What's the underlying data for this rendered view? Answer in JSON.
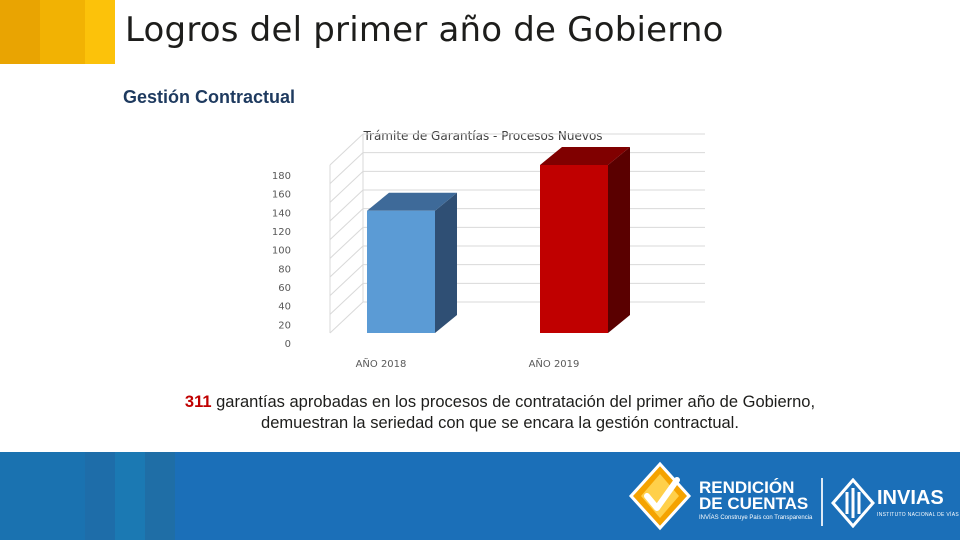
{
  "header": {
    "title": "Logros del primer año de Gobierno",
    "stripe_colors": [
      "#e9a402",
      "#f2b203",
      "#fcc20a"
    ]
  },
  "section": {
    "title": "Gestión Contractual"
  },
  "chart_data": {
    "type": "bar",
    "style": "3d-column",
    "title": "Trámite de Garantías - Procesos Nuevos",
    "categories": [
      "AÑO 2018",
      "AÑO 2019"
    ],
    "values": [
      131,
      180
    ],
    "colors": [
      "#5b9bd5",
      "#c00000"
    ],
    "side_colors": [
      "#2f4f74",
      "#5a0000"
    ],
    "top_colors": [
      "#3e6a99",
      "#800000"
    ],
    "yticks": [
      "0",
      "20",
      "40",
      "60",
      "80",
      "100",
      "120",
      "140",
      "160",
      "180"
    ],
    "ylim": [
      0,
      180
    ],
    "xlabel": "",
    "ylabel": "",
    "grid": true,
    "legend": "none"
  },
  "caption": {
    "number": "311",
    "text_line1": " garantías aprobadas en los procesos de contratación del primer año de Gobierno,",
    "text_line2": "demuestran la seriedad con que se encara la gestión contractual."
  },
  "footer": {
    "stripe_colors": [
      "#1a72b0",
      "#1e6da9",
      "#1b79b3",
      "#1f6ea6"
    ],
    "rc_line1": "RENDICIÓN",
    "rc_line2": "DE CUENTAS",
    "rc_sub": "INVÍAS Construye País con Transparencia",
    "invias": "INVIAS",
    "invias_sub": "INSTITUTO NACIONAL DE VÍAS"
  }
}
